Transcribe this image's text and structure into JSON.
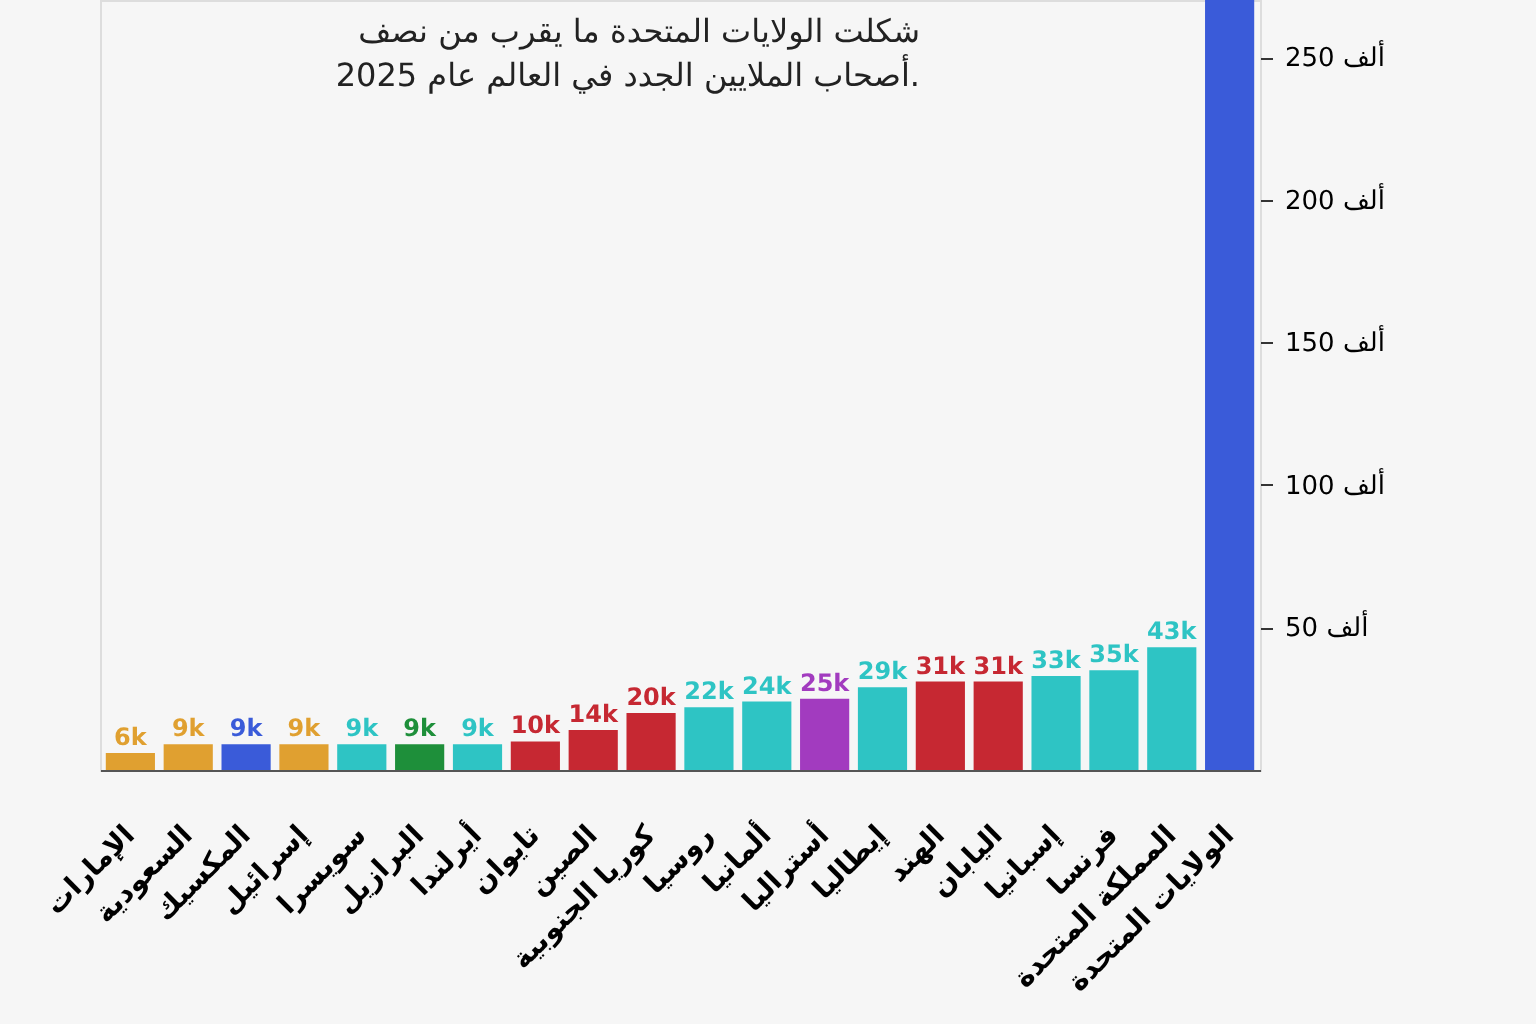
{
  "chart_data": {
    "type": "bar",
    "title": "شكلت الولايات المتحدة ما يقرب من نصف\nأصحاب الملايين الجدد في العالم عام 2025.",
    "categories": [
      "الإمارات",
      "السعودية",
      "المكسيك",
      "إسرائيل",
      "سويسرا",
      "البرازيل",
      "أيرلندا",
      "تايوان",
      "الصين",
      "كوريا الجنوبية",
      "روسيا",
      "ألمانيا",
      "أستراليا",
      "إيطاليا",
      "الهند",
      "اليابان",
      "إسبانيا",
      "فرنسا",
      "المملكة المتحدة",
      "الولايات المتحدة"
    ],
    "values": [
      6,
      9,
      9,
      9,
      9,
      9,
      9,
      10,
      14,
      20,
      22,
      24,
      25,
      29,
      31,
      31,
      33,
      35,
      43,
      270
    ],
    "colors": [
      "#e0a030",
      "#e0a030",
      "#3a5bd9",
      "#e0a030",
      "#2ec4c4",
      "#1e8f3a",
      "#2ec4c4",
      "#c62832",
      "#c62832",
      "#c62832",
      "#2ec4c4",
      "#2ec4c4",
      "#a23bbf",
      "#2ec4c4",
      "#c62832",
      "#c62832",
      "#2ec4c4",
      "#2ec4c4",
      "#2ec4c4",
      "#3a5bd9"
    ],
    "value_labels": [
      "6k",
      "9k",
      "9k",
      "9k",
      "9k",
      "9k",
      "9k",
      "10k",
      "14k",
      "20k",
      "22k",
      "24k",
      "25k",
      "29k",
      "31k",
      "31k",
      "33k",
      "35k",
      "43k",
      null
    ],
    "ylim": [
      0,
      270
    ],
    "yticks": [
      {
        "value": 50,
        "label": "50 ألف"
      },
      {
        "value": 100,
        "label": "100 ألف"
      },
      {
        "value": 150,
        "label": "150 ألف"
      },
      {
        "value": 200,
        "label": "200 ألف"
      },
      {
        "value": 250,
        "label": "250 ألف"
      }
    ],
    "grid": false
  }
}
